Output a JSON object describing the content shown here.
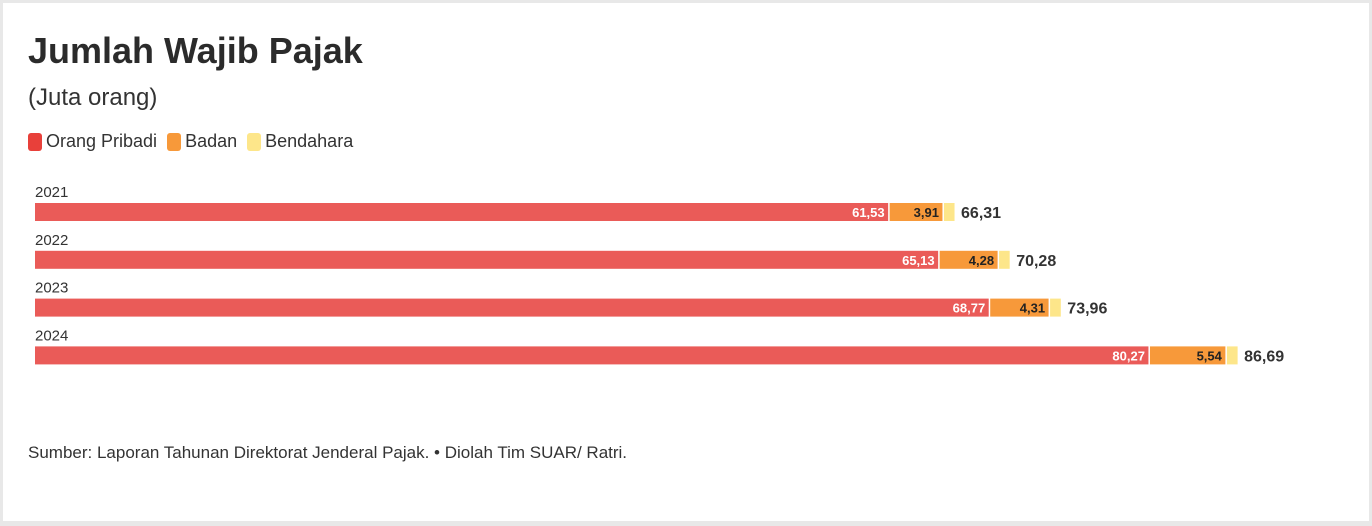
{
  "header": {
    "title": "Jumlah Wajib Pajak",
    "subtitle": "(Juta orang)"
  },
  "legend": {
    "items": [
      {
        "label": "Orang Pribadi",
        "color": "#e8403a"
      },
      {
        "label": "Badan",
        "color": "#f7993a"
      },
      {
        "label": "Bendahara",
        "color": "#fde68a"
      }
    ]
  },
  "colors": {
    "orang_pribadi": "#ea5b58",
    "badan": "#f7993a",
    "bendahara": "#fde68a",
    "text": "#333333"
  },
  "chart_data": {
    "type": "bar",
    "orientation": "horizontal",
    "stacked": true,
    "categories": [
      "2021",
      "2022",
      "2023",
      "2024"
    ],
    "series": [
      {
        "name": "Orang Pribadi",
        "values": [
          61.53,
          65.13,
          68.77,
          80.27
        ],
        "labels": [
          "61,53",
          "65,13",
          "68,77",
          "80,27"
        ]
      },
      {
        "name": "Badan",
        "values": [
          3.91,
          4.28,
          4.31,
          5.54
        ],
        "labels": [
          "3,91",
          "4,28",
          "4,31",
          "5,54"
        ]
      },
      {
        "name": "Bendahara",
        "values": [
          0.87,
          0.87,
          0.88,
          0.88
        ],
        "labels": [
          "",
          "",
          "",
          ""
        ]
      }
    ],
    "totals": [
      66.31,
      70.28,
      73.96,
      86.69
    ],
    "total_labels": [
      "66,31",
      "70,28",
      "73,96",
      "86,69"
    ],
    "title": "Jumlah Wajib Pajak",
    "subtitle": "(Juta orang)",
    "legend_position": "top-left",
    "grid": false
  },
  "footer": {
    "source": "Sumber: Laporan Tahunan Direktorat Jenderal Pajak. • Diolah Tim SUAR/ Ratri."
  }
}
